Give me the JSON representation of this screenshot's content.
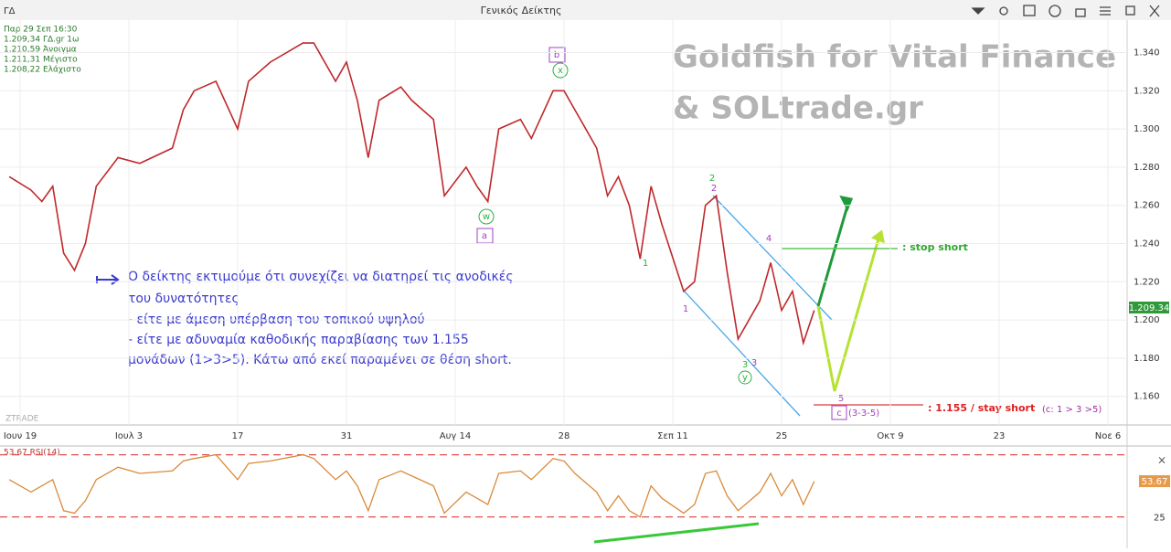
{
  "toolbar": {
    "symbol": "ΓΔ",
    "title": "Γενικός Δείκτης"
  },
  "info": [
    "Παρ 29 Σεπ 16:30",
    "1.209,34 ΓΔ.gr 1ω",
    "1.210,59 Άνοιγμα",
    "1.211,31 Μέγιστο",
    "1.208,22 Ελάχιστο"
  ],
  "watermark": [
    "Goldfish for Vital Finance",
    "& SOLtrade.gr"
  ],
  "brand": "ZTRADE",
  "comment": [
    "Ο δείκτης εκτιμούμε ότι συνεχίζει να διατηρεί τις ανοδικές",
    "του δυνατότητες",
    "- είτε με άμεση υπέρβαση του τοπικού υψηλού",
    "- είτε με αδυναμία καθοδικής παραβίασης των 1.155",
    "μονάδων (1>3>5). Κάτω από εκεί παραμένει σε θέση short."
  ],
  "waves": {
    "b": "b",
    "x": "x",
    "w": "w",
    "a": "a",
    "two_green": "2",
    "two_purple": "2",
    "one_green": "1",
    "one_purple": "1",
    "four": "4",
    "three_green": "3",
    "three_purple": "3",
    "y": "y",
    "five": "5",
    "c": "c",
    "c_struct": "(3-3-5)"
  },
  "levels": {
    "stop": ": stop short",
    "stay": ": 1.155 / stay short",
    "cond": "(c: 1 > 3 >5)"
  },
  "price_tag": "1.209.34",
  "chart_data": {
    "type": "line",
    "color": "#c0282c",
    "x": [
      -1,
      1,
      2,
      3,
      4,
      5,
      6,
      7,
      9,
      11,
      14,
      15,
      16,
      18,
      20,
      21,
      23,
      26,
      27,
      29,
      30,
      31,
      32,
      33,
      35,
      36,
      38,
      39,
      41,
      42,
      43,
      44,
      46,
      47,
      49,
      50,
      51,
      53,
      54,
      55,
      56,
      57,
      58,
      59,
      61,
      62,
      63,
      64,
      65,
      66,
      68,
      69,
      70,
      71,
      72,
      73
    ],
    "values": [
      1.275,
      1.268,
      1.262,
      1.27,
      1.235,
      1.226,
      1.24,
      1.27,
      1.285,
      1.282,
      1.29,
      1.31,
      1.32,
      1.325,
      1.3,
      1.325,
      1.335,
      1.345,
      1.345,
      1.325,
      1.335,
      1.315,
      1.285,
      1.315,
      1.322,
      1.315,
      1.305,
      1.265,
      1.28,
      1.27,
      1.262,
      1.3,
      1.305,
      1.295,
      1.32,
      1.32,
      1.31,
      1.29,
      1.265,
      1.275,
      1.26,
      1.232,
      1.27,
      1.25,
      1.215,
      1.22,
      1.26,
      1.265,
      1.225,
      1.19,
      1.21,
      1.23,
      1.205,
      1.215,
      1.188,
      1.205
    ],
    "ylim": [
      1.145,
      1.357
    ],
    "yticks": [
      {
        "value": 1.34,
        "label": "1.340"
      },
      {
        "value": 1.32,
        "label": "1.320"
      },
      {
        "value": 1.3,
        "label": "1.300"
      },
      {
        "value": 1.28,
        "label": "1.280"
      },
      {
        "value": 1.26,
        "label": "1.260"
      },
      {
        "value": 1.24,
        "label": "1.240"
      },
      {
        "value": 1.22,
        "label": "1.220"
      },
      {
        "value": 1.2,
        "label": "1.200"
      },
      {
        "value": 1.18,
        "label": "1.180"
      },
      {
        "value": 1.16,
        "label": "1.160"
      }
    ],
    "xticks": [
      {
        "value": 0,
        "label": "Ιουν 19"
      },
      {
        "value": 10,
        "label": "Ιουλ 3"
      },
      {
        "value": 20,
        "label": "17"
      },
      {
        "value": 30,
        "label": "31"
      },
      {
        "value": 40,
        "label": "Αυγ 14"
      },
      {
        "value": 50,
        "label": "28"
      },
      {
        "value": 60,
        "label": "Σεπ 11"
      },
      {
        "value": 70,
        "label": "25"
      },
      {
        "value": 80,
        "label": "Οκτ 9"
      },
      {
        "value": 90,
        "label": "23"
      },
      {
        "value": 100,
        "label": "Νοε 6"
      }
    ],
    "grid": true,
    "rsi": {
      "label": "53.67 RSI(14)",
      "last_label": "53.67",
      "color": "#d98a3a",
      "ylim": [
        17,
        85
      ],
      "levels": [
        75,
        25
      ],
      "values": [
        55,
        45,
        50,
        55,
        30,
        28,
        38,
        55,
        65,
        60,
        62,
        70,
        72,
        75,
        55,
        68,
        70,
        75,
        72,
        55,
        62,
        50,
        30,
        55,
        62,
        58,
        50,
        28,
        45,
        40,
        35,
        60,
        62,
        55,
        72,
        70,
        60,
        45,
        30,
        42,
        30,
        25,
        50,
        40,
        28,
        35,
        60,
        62,
        42,
        30,
        45,
        60,
        42,
        55,
        35,
        53.67
      ]
    }
  }
}
